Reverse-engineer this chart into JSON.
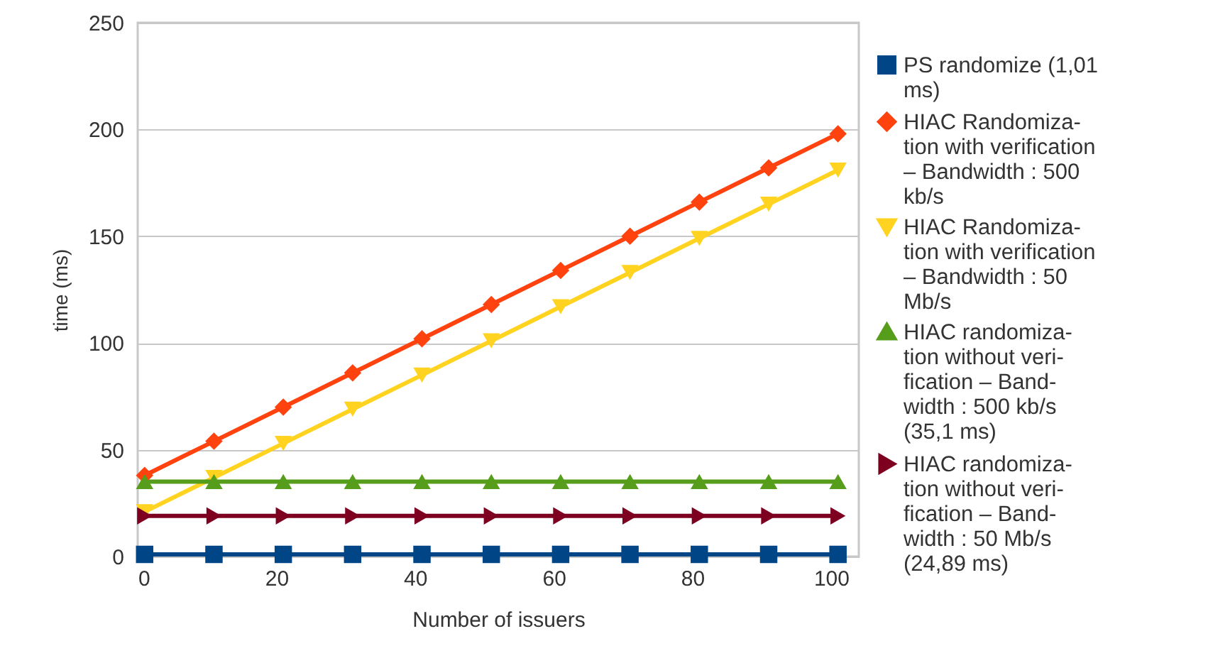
{
  "chart_data": {
    "type": "line",
    "xlabel": "Number of issuers",
    "ylabel": "time (ms)",
    "x": [
      1,
      11,
      21,
      31,
      41,
      51,
      61,
      71,
      81,
      91,
      101
    ],
    "xlim": [
      0,
      104
    ],
    "xticks": [
      0,
      20,
      40,
      60,
      80,
      100
    ],
    "ylim": [
      0,
      250
    ],
    "yticks": [
      0,
      50,
      100,
      150,
      200,
      250
    ],
    "grid": "y",
    "legend": "right",
    "series": [
      {
        "name": "PS randomize (1,01\nms)",
        "color": "#004586",
        "marker": "square",
        "values": [
          1,
          1,
          1,
          1,
          1,
          1,
          1,
          1,
          1,
          1,
          1
        ]
      },
      {
        "name": "HIAC Randomiza-\ntion with verification\n– Bandwidth : 500\nkb/s",
        "color": "#ff420e",
        "marker": "diamond",
        "values": [
          38,
          54,
          70,
          86,
          102,
          118,
          134,
          150,
          166,
          182,
          198
        ]
      },
      {
        "name": "HIAC Randomiza-\ntion with verification\n– Bandwidth : 50\nMb/s",
        "color": "#ffd320",
        "marker": "triangle-down",
        "values": [
          21,
          37,
          53,
          69,
          85,
          101,
          117,
          133,
          149,
          165,
          181
        ]
      },
      {
        "name": "HIAC randomiza-\ntion without veri-\nfication – Band-\nwidth : 500 kb/s\n(35,1 ms)",
        "color": "#579d1c",
        "marker": "triangle-up",
        "values": [
          35.1,
          35.1,
          35.1,
          35.1,
          35.1,
          35.1,
          35.1,
          35.1,
          35.1,
          35.1,
          35.1
        ]
      },
      {
        "name": "HIAC randomiza-\ntion without veri-\nfication – Band-\nwidth : 50 Mb/s\n(24,89 ms)",
        "color": "#7e0021",
        "marker": "triangle-right",
        "values": [
          19,
          19,
          19,
          19,
          19,
          19,
          19,
          19,
          19,
          19,
          19
        ]
      }
    ]
  }
}
